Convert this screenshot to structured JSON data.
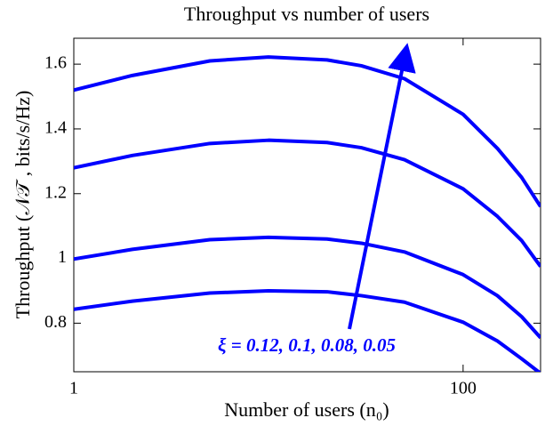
{
  "chart_data": {
    "type": "line",
    "title": "Throughput vs number of users",
    "x_label": "Number of users (n₀)",
    "y_label": "Throughput (𝒩𝒯 , bits/s/Hz)",
    "annotation": "ξ = 0.12, 0.1, 0.08, 0.05",
    "x": [
      1,
      2,
      5,
      10,
      20,
      30,
      50,
      100,
      150,
      200,
      250
    ],
    "x_log": true,
    "xlim": [
      1,
      250
    ],
    "xticks": [
      1,
      100
    ],
    "ylim": [
      0.65,
      1.68
    ],
    "yticks": [
      0.8,
      1,
      1.2,
      1.4,
      1.6
    ],
    "series": [
      {
        "color": "#0000ff",
        "values": [
          1.52,
          1.565,
          1.61,
          1.622,
          1.613,
          1.595,
          1.555,
          1.445,
          1.34,
          1.25,
          1.16
        ]
      },
      {
        "color": "#0000ff",
        "values": [
          1.28,
          1.318,
          1.355,
          1.365,
          1.358,
          1.342,
          1.305,
          1.215,
          1.13,
          1.055,
          0.975
        ]
      },
      {
        "color": "#0000ff",
        "values": [
          0.998,
          1.028,
          1.058,
          1.065,
          1.06,
          1.047,
          1.02,
          0.95,
          0.885,
          0.82,
          0.755
        ]
      },
      {
        "color": "#0000ff",
        "values": [
          0.843,
          0.868,
          0.893,
          0.9,
          0.897,
          0.885,
          0.865,
          0.803,
          0.745,
          0.69,
          0.645
        ]
      }
    ]
  }
}
